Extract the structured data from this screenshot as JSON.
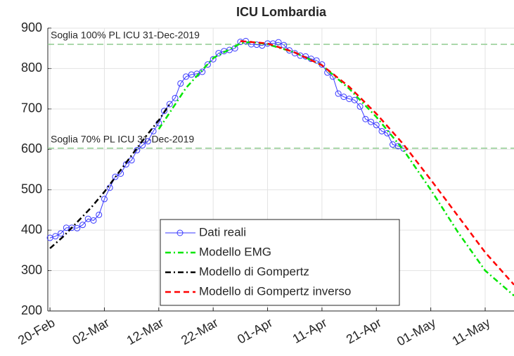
{
  "chart_data": {
    "type": "line",
    "title": "ICU Lombardia",
    "xlim": [
      -0.4,
      85.3
    ],
    "xticks": [
      {
        "value": 0,
        "label": "20-Feb"
      },
      {
        "value": 10,
        "label": "02-Mar"
      },
      {
        "value": 20,
        "label": "12-Mar"
      },
      {
        "value": 30,
        "label": "22-Mar"
      },
      {
        "value": 40,
        "label": "01-Apr"
      },
      {
        "value": 50,
        "label": "11-Apr"
      },
      {
        "value": 60,
        "label": "21-Apr"
      },
      {
        "value": 70,
        "label": "01-May"
      },
      {
        "value": 80,
        "label": "11-May"
      }
    ],
    "ylim": [
      200,
      900
    ],
    "yticks": [
      200,
      300,
      400,
      500,
      600,
      700,
      800,
      900
    ],
    "grid": true,
    "hlines": [
      {
        "value": 860,
        "label": "Soglia 100% PL ICU 31-Dec-2019",
        "color": "#8fcc8f"
      },
      {
        "value": 603,
        "label": "Soglia 70% PL ICU 31-Dec-2019",
        "color": "#8fcc8f"
      }
    ],
    "legend": "lower center",
    "series": [
      {
        "name": "Dati reali",
        "color": "#3a3aff",
        "linestyle": "solid",
        "marker": "circle",
        "x": [
          0,
          1,
          2,
          3,
          4,
          5,
          6,
          7,
          8,
          9,
          10,
          11,
          12,
          13,
          14,
          15,
          16,
          17,
          18,
          19,
          20,
          21,
          22,
          23,
          24,
          25,
          26,
          27,
          28,
          29,
          30,
          31,
          32,
          33,
          34,
          35,
          36,
          37,
          38,
          39,
          40,
          41,
          42,
          43,
          44,
          45,
          46,
          47,
          48,
          49,
          50,
          51,
          52,
          53,
          54,
          55,
          56,
          57,
          58,
          59,
          60,
          61,
          62,
          63,
          64,
          65
        ],
        "values": [
          381,
          385,
          392,
          406,
          406,
          405,
          413,
          428,
          424,
          438,
          477,
          505,
          532,
          540,
          563,
          573,
          598,
          610,
          620,
          645,
          665,
          695,
          712,
          727,
          763,
          780,
          785,
          787,
          792,
          810,
          823,
          838,
          843,
          846,
          850,
          866,
          868,
          860,
          859,
          857,
          862,
          862,
          865,
          858,
          845,
          838,
          832,
          830,
          824,
          820,
          810,
          790,
          780,
          738,
          730,
          725,
          722,
          706,
          675,
          668,
          660,
          645,
          640,
          612,
          608,
          602
        ]
      },
      {
        "name": "Modello EMG",
        "color": "#00e600",
        "linestyle": "dashdot",
        "x": [
          20,
          25,
          30,
          35,
          37,
          40,
          45,
          50,
          55,
          60,
          65,
          70,
          75,
          80,
          85.3
        ],
        "values": [
          650,
          752,
          826,
          862,
          866,
          860,
          840,
          808,
          750,
          680,
          598,
          500,
          395,
          300,
          238
        ]
      },
      {
        "name": "Modello di Gompertz",
        "color": "#000000",
        "linestyle": "dashdot",
        "x": [
          0,
          2.5,
          5,
          7.5,
          10,
          12.5,
          15,
          17.5,
          20,
          22
        ],
        "values": [
          355,
          385,
          420,
          455,
          495,
          540,
          585,
          630,
          672,
          712
        ]
      },
      {
        "name": "Modello di Gompertz inverso",
        "color": "#ff0000",
        "linestyle": "dashed",
        "x": [
          35,
          40,
          45,
          50,
          55,
          60,
          65,
          70,
          75,
          80,
          85.3
        ],
        "values": [
          868,
          862,
          840,
          808,
          755,
          688,
          612,
          525,
          435,
          345,
          265
        ]
      }
    ]
  }
}
